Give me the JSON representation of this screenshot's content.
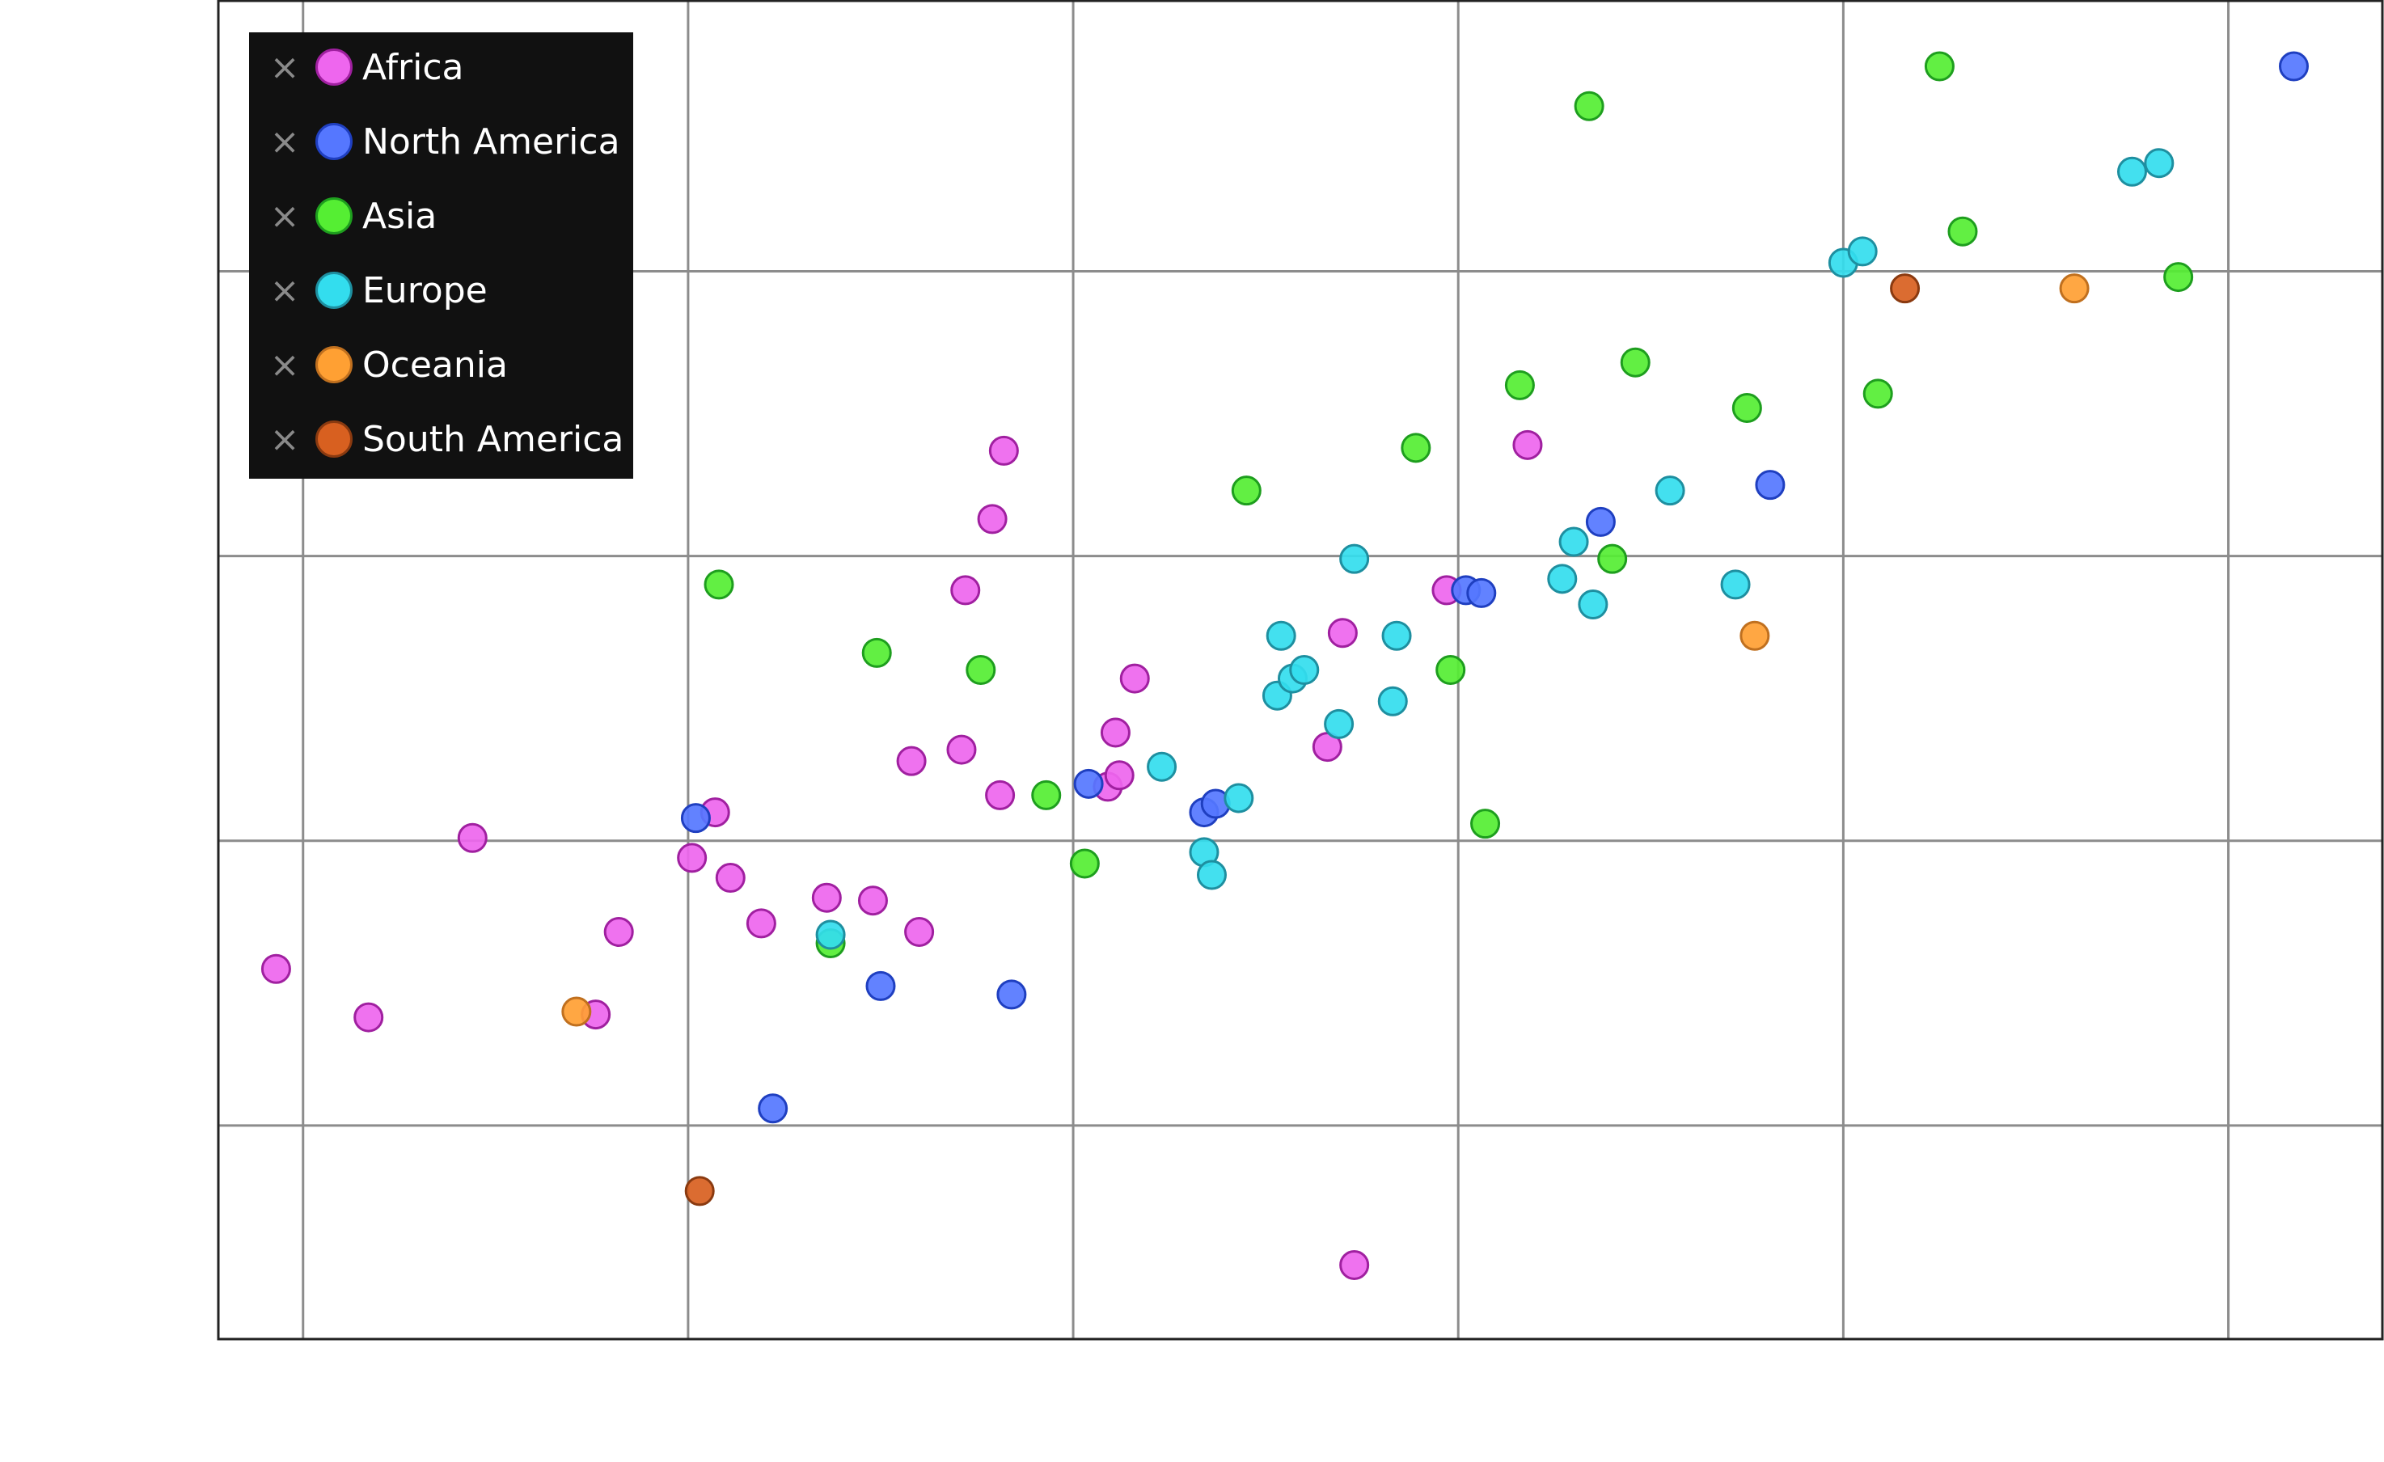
{
  "chart_data": {
    "type": "scatter",
    "title": "",
    "xlabel": "",
    "ylabel": "",
    "grid": true,
    "legend_position": "top-left",
    "xlim": [
      -0.22,
      5.4
    ],
    "ylim": [
      -1.75,
      2.95
    ],
    "series": [
      {
        "name": "Africa",
        "color": "#ee66ee",
        "edge": "#a020a0",
        "points": [
          [
            -0.07,
            -0.45
          ],
          [
            0.17,
            -0.62
          ],
          [
            0.44,
            0.01
          ],
          [
            0.82,
            -0.32
          ],
          [
            0.76,
            -0.61
          ],
          [
            1.01,
            -0.06
          ],
          [
            1.07,
            0.1
          ],
          [
            1.11,
            -0.13
          ],
          [
            1.19,
            -0.29
          ],
          [
            1.36,
            -0.2
          ],
          [
            1.48,
            -0.21
          ],
          [
            1.58,
            0.28
          ],
          [
            1.6,
            -0.32
          ],
          [
            1.71,
            0.32
          ],
          [
            1.72,
            0.88
          ],
          [
            1.79,
            1.13
          ],
          [
            1.82,
            1.37
          ],
          [
            1.81,
            0.16
          ],
          [
            2.09,
            0.19
          ],
          [
            2.11,
            0.38
          ],
          [
            2.12,
            0.23
          ],
          [
            2.16,
            0.57
          ],
          [
            2.66,
            0.33
          ],
          [
            2.73,
            -1.49
          ],
          [
            2.7,
            0.73
          ],
          [
            2.97,
            0.88
          ],
          [
            3.18,
            1.39
          ]
        ]
      },
      {
        "name": "North America",
        "color": "#5577ff",
        "edge": "#1f3fc0",
        "points": [
          [
            1.02,
            0.08
          ],
          [
            1.22,
            -0.94
          ],
          [
            1.5,
            -0.51
          ],
          [
            1.84,
            -0.54
          ],
          [
            2.04,
            0.2
          ],
          [
            2.34,
            0.1
          ],
          [
            2.37,
            0.13
          ],
          [
            3.02,
            0.88
          ],
          [
            3.06,
            0.87
          ],
          [
            3.37,
            1.12
          ],
          [
            3.81,
            1.25
          ],
          [
            5.17,
            2.72
          ]
        ]
      },
      {
        "name": "Asia",
        "color": "#55ee33",
        "edge": "#1e9e1e",
        "points": [
          [
            1.08,
            0.9
          ],
          [
            1.37,
            -0.36
          ],
          [
            1.49,
            0.66
          ],
          [
            1.76,
            0.6
          ],
          [
            1.93,
            0.16
          ],
          [
            2.03,
            -0.08
          ],
          [
            2.45,
            1.23
          ],
          [
            2.89,
            1.38
          ],
          [
            2.98,
            0.6
          ],
          [
            3.07,
            0.06
          ],
          [
            3.16,
            1.6
          ],
          [
            3.34,
            2.58
          ],
          [
            3.4,
            0.99
          ],
          [
            3.46,
            1.68
          ],
          [
            3.75,
            1.52
          ],
          [
            4.09,
            1.57
          ],
          [
            4.25,
            2.72
          ],
          [
            4.31,
            2.14
          ],
          [
            4.87,
            1.98
          ]
        ]
      },
      {
        "name": "Europe",
        "color": "#33ddee",
        "edge": "#1e8fa0",
        "points": [
          [
            1.37,
            -0.33
          ],
          [
            2.23,
            0.26
          ],
          [
            2.34,
            -0.04
          ],
          [
            2.36,
            -0.12
          ],
          [
            2.43,
            0.15
          ],
          [
            2.53,
            0.51
          ],
          [
            2.54,
            0.72
          ],
          [
            2.57,
            0.57
          ],
          [
            2.6,
            0.6
          ],
          [
            2.69,
            0.41
          ],
          [
            2.73,
            0.99
          ],
          [
            2.83,
            0.49
          ],
          [
            2.84,
            0.72
          ],
          [
            3.27,
            0.92
          ],
          [
            3.3,
            1.05
          ],
          [
            3.35,
            0.83
          ],
          [
            3.55,
            1.23
          ],
          [
            3.72,
            0.9
          ],
          [
            4.0,
            2.03
          ],
          [
            4.05,
            2.07
          ],
          [
            4.75,
            2.35
          ],
          [
            4.82,
            2.38
          ]
        ]
      },
      {
        "name": "Oceania",
        "color": "#ffa033",
        "edge": "#c0701f",
        "points": [
          [
            0.71,
            -0.6
          ],
          [
            3.77,
            0.72
          ],
          [
            4.6,
            1.94
          ]
        ]
      },
      {
        "name": "South America",
        "color": "#d86020",
        "edge": "#8a3a10",
        "points": [
          [
            1.03,
            -1.23
          ],
          [
            4.16,
            1.94
          ]
        ]
      }
    ]
  }
}
